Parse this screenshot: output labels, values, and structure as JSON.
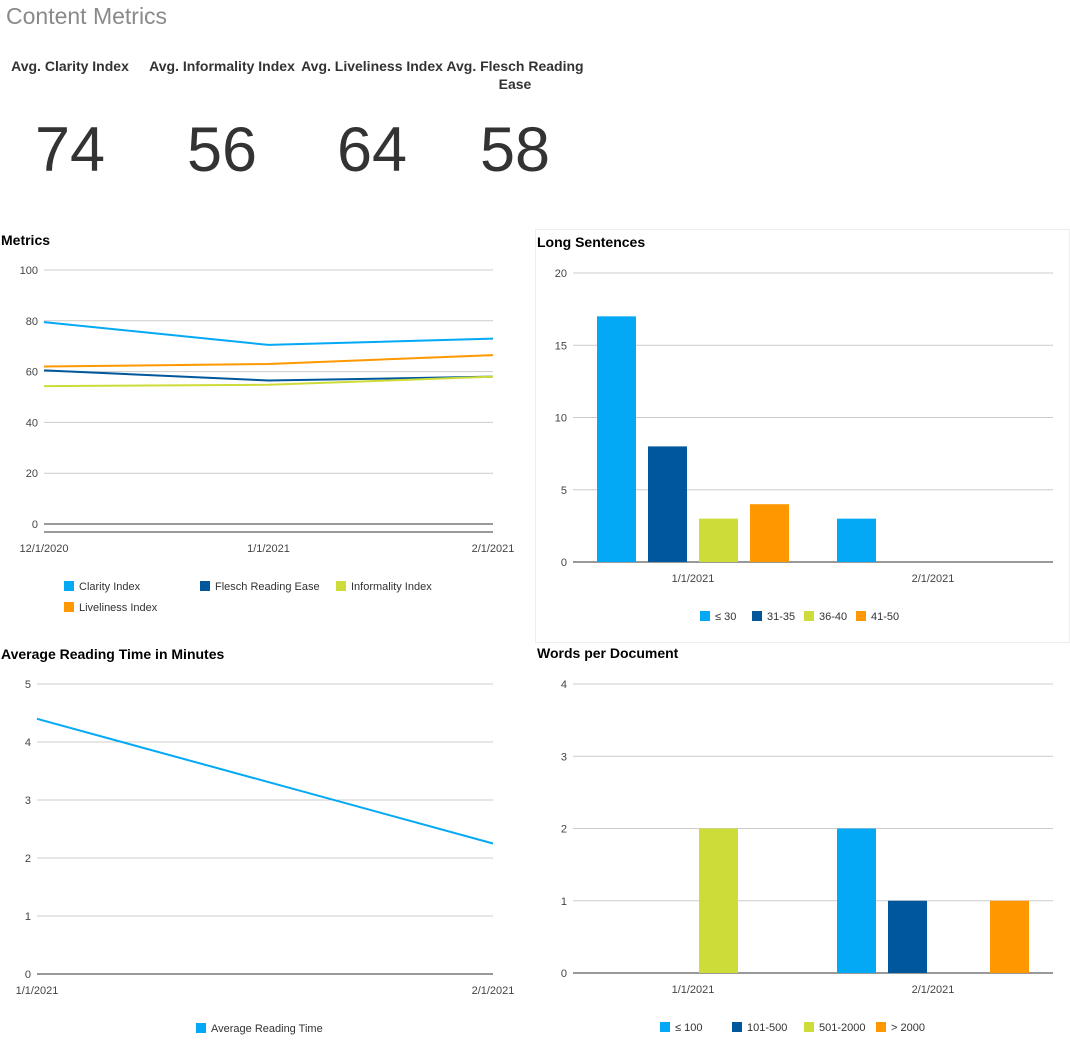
{
  "page_title": "Content Metrics",
  "kpis": [
    {
      "label": "Avg. Clarity Index",
      "value": "74"
    },
    {
      "label": "Avg. Informality Index",
      "value": "56"
    },
    {
      "label": "Avg. Liveliness Index",
      "value": "64"
    },
    {
      "label": "Avg. Flesch Reading Ease",
      "value": "58"
    }
  ],
  "chart_data": [
    {
      "type": "line",
      "title": "Metrics",
      "x": [
        "12/1/2020",
        "1/1/2021",
        "2/1/2021"
      ],
      "ylim": [
        0,
        100
      ],
      "yticks": [
        0,
        20,
        40,
        60,
        80,
        100
      ],
      "grid": true,
      "legend_position": "bottom",
      "series": [
        {
          "name": "Clarity Index",
          "color": "#03a9f4",
          "values": [
            79.5,
            70.5,
            73
          ]
        },
        {
          "name": "Flesch Reading Ease",
          "color": "#01579b",
          "values": [
            60.5,
            56.5,
            58
          ]
        },
        {
          "name": "Informality Index",
          "color": "#cddc39",
          "values": [
            54.3,
            54.8,
            58
          ]
        },
        {
          "name": "Liveliness Index",
          "color": "#ff9800",
          "values": [
            62,
            63,
            66.5
          ]
        }
      ]
    },
    {
      "type": "bar",
      "title": "Long Sentences",
      "categories": [
        "1/1/2021",
        "2/1/2021"
      ],
      "ylim": [
        0,
        20
      ],
      "yticks": [
        0,
        5,
        10,
        15,
        20
      ],
      "grid": true,
      "legend_position": "bottom",
      "series": [
        {
          "name": "≤ 30",
          "color": "#03a9f4",
          "values": [
            17,
            3
          ]
        },
        {
          "name": "31-35",
          "color": "#01579b",
          "values": [
            8,
            0
          ]
        },
        {
          "name": "36-40",
          "color": "#cddc39",
          "values": [
            3,
            0
          ]
        },
        {
          "name": "41-50",
          "color": "#ff9800",
          "values": [
            4,
            0
          ]
        }
      ]
    },
    {
      "type": "line",
      "title": "Average Reading Time in Minutes",
      "x": [
        "1/1/2021",
        "2/1/2021"
      ],
      "ylim": [
        0,
        5
      ],
      "yticks": [
        0,
        1,
        2,
        3,
        4,
        5
      ],
      "grid": true,
      "legend_position": "bottom",
      "series": [
        {
          "name": "Average Reading Time",
          "color": "#03a9f4",
          "values": [
            4.4,
            2.25
          ]
        }
      ]
    },
    {
      "type": "bar",
      "title": "Words per Document",
      "categories": [
        "1/1/2021",
        "2/1/2021"
      ],
      "ylim": [
        0,
        4
      ],
      "yticks": [
        0,
        1,
        2,
        3,
        4
      ],
      "grid": true,
      "legend_position": "bottom",
      "series": [
        {
          "name": "≤ 100",
          "color": "#03a9f4",
          "values": [
            0,
            2
          ]
        },
        {
          "name": "101-500",
          "color": "#01579b",
          "values": [
            0,
            1
          ]
        },
        {
          "name": "501-2000",
          "color": "#cddc39",
          "values": [
            2,
            0
          ]
        },
        {
          "name": "> 2000",
          "color": "#ff9800",
          "values": [
            0,
            1
          ]
        }
      ]
    }
  ]
}
